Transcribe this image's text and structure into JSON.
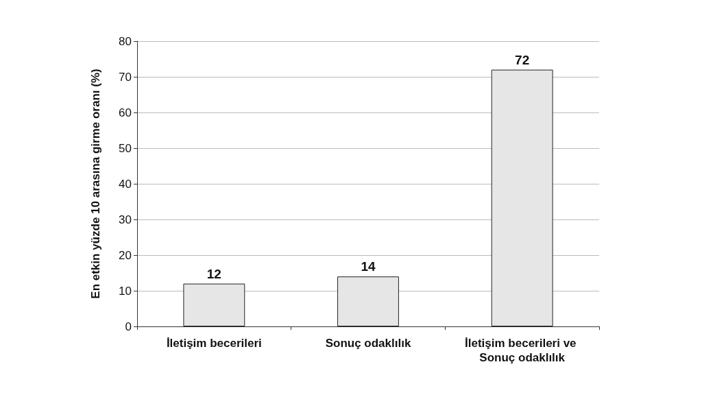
{
  "chart_data": {
    "type": "bar",
    "ylabel": "En etkin yüzde 10 arasına girme oranı (%)",
    "categories": [
      "İletişim becerileri",
      "Sonuç odaklılık",
      "İletişim becerileri ve Sonuç odaklılık"
    ],
    "values": [
      12,
      14,
      72
    ],
    "color": "#e6e6e6",
    "ylim": [
      0,
      80
    ],
    "yticks": [
      0,
      10,
      20,
      30,
      40,
      50,
      60,
      70,
      80
    ],
    "grid": "y",
    "data_labels": true
  }
}
